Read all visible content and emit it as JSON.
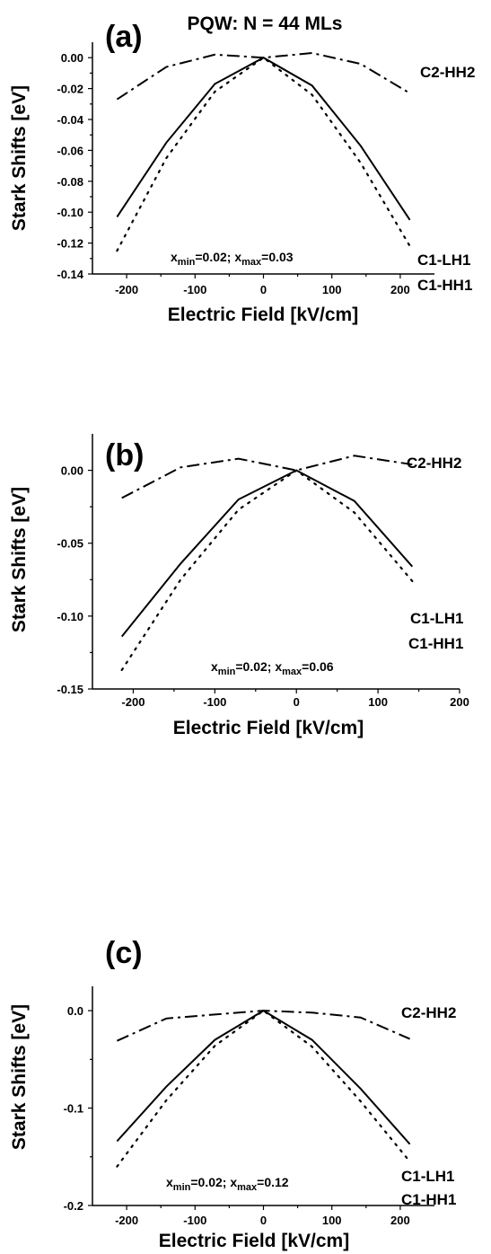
{
  "chart_data": [
    {
      "type": "line",
      "panel_label": "(a)",
      "title": "PQW: N = 44 MLs",
      "xlabel": "Electric Field [kV/cm]",
      "ylabel": "Stark Shifts [eV]",
      "xlim": [
        -250,
        250
      ],
      "ylim": [
        -0.14,
        0.01
      ],
      "xticks": [
        -200,
        -100,
        0,
        100,
        200
      ],
      "xtick_labels": [
        "-200",
        "-100",
        "0",
        "100",
        "200"
      ],
      "yticks": [
        0.0,
        -0.02,
        -0.04,
        -0.06,
        -0.08,
        -0.1,
        -0.12,
        -0.14
      ],
      "ytick_labels": [
        "0.00",
        "-0.02",
        "-0.04",
        "-0.06",
        "-0.08",
        "-0.10",
        "-0.12",
        "-0.14"
      ],
      "annotation": {
        "a": "x",
        "b": "min",
        "c": "=0.02;   x",
        "d": "max",
        "e": "=0.03"
      },
      "series": [
        {
          "name": "C2-HH2",
          "style": "dashdot",
          "x": [
            -214,
            -142,
            -71,
            0,
            71,
            142,
            214
          ],
          "y": [
            -0.027,
            -0.006,
            0.002,
            0.0,
            0.003,
            -0.004,
            -0.023
          ]
        },
        {
          "name": "C1-LH1",
          "style": "solid",
          "x": [
            -214,
            -142,
            -71,
            0,
            71,
            142,
            214
          ],
          "y": [
            -0.103,
            -0.055,
            -0.017,
            0.0,
            -0.018,
            -0.057,
            -0.105
          ]
        },
        {
          "name": "C1-HH1",
          "style": "dotted",
          "x": [
            -214,
            -142,
            -71,
            0,
            71,
            142,
            214
          ],
          "y": [
            -0.125,
            -0.065,
            -0.022,
            0.0,
            -0.024,
            -0.068,
            -0.122
          ]
        }
      ]
    },
    {
      "type": "line",
      "panel_label": "(b)",
      "title": "",
      "xlabel": "Electric Field [kV/cm]",
      "ylabel": "Stark Shifts [eV]",
      "xlim": [
        -250,
        200
      ],
      "ylim": [
        -0.15,
        0.025
      ],
      "xticks": [
        -200,
        -100,
        0,
        100,
        200
      ],
      "xtick_labels": [
        "-200",
        "-100",
        "0",
        "100",
        "200"
      ],
      "yticks": [
        0.0,
        -0.05,
        -0.1,
        -0.15
      ],
      "ytick_labels": [
        "0.00",
        "-0.05",
        "-0.10",
        "-0.15"
      ],
      "annotation": {
        "a": "x",
        "b": "min",
        "c": "=0.02;  x",
        "d": "max",
        "e": "=0.06"
      },
      "series": [
        {
          "name": "C2-HH2",
          "style": "dashdot",
          "x": [
            -214,
            -142,
            -71,
            0,
            71,
            142
          ],
          "y": [
            -0.019,
            0.002,
            0.008,
            0.0,
            0.01,
            0.004
          ]
        },
        {
          "name": "C1-LH1",
          "style": "solid",
          "x": [
            -214,
            -142,
            -71,
            0,
            71,
            142
          ],
          "y": [
            -0.114,
            -0.064,
            -0.02,
            0.0,
            -0.021,
            -0.066
          ]
        },
        {
          "name": "C1-HH1",
          "style": "dotted",
          "x": [
            -214,
            -142,
            -71,
            0,
            71,
            142
          ],
          "y": [
            -0.137,
            -0.075,
            -0.027,
            0.0,
            -0.029,
            -0.076
          ]
        }
      ]
    },
    {
      "type": "line",
      "panel_label": "(c)",
      "title": "",
      "xlabel": "Electric Field [kV/cm]",
      "ylabel": "Stark Shifts [eV]",
      "xlim": [
        -250,
        250
      ],
      "ylim": [
        -0.2,
        0.025
      ],
      "xticks": [
        -200,
        -100,
        0,
        100,
        200
      ],
      "xtick_labels": [
        "-200",
        "-100",
        "0",
        "100",
        "200"
      ],
      "yticks": [
        0.0,
        -0.1,
        -0.2
      ],
      "ytick_labels": [
        "0.0",
        "-0.1",
        "-0.2"
      ],
      "annotation": {
        "a": "x",
        "b": "min",
        "c": "=0.02;  x",
        "d": "max",
        "e": "=0.12"
      },
      "series": [
        {
          "name": "C2-HH2",
          "style": "dashdot",
          "x": [
            -214,
            -142,
            -71,
            0,
            71,
            142,
            214
          ],
          "y": [
            -0.031,
            -0.008,
            -0.004,
            0.0,
            -0.002,
            -0.007,
            -0.029
          ]
        },
        {
          "name": "C1-LH1",
          "style": "solid",
          "x": [
            -214,
            -142,
            -71,
            0,
            71,
            142,
            214
          ],
          "y": [
            -0.134,
            -0.078,
            -0.03,
            0.0,
            -0.03,
            -0.08,
            -0.137
          ]
        },
        {
          "name": "C1-HH1",
          "style": "dotted",
          "x": [
            -214,
            -142,
            -71,
            0,
            71,
            142,
            214
          ],
          "y": [
            -0.16,
            -0.092,
            -0.036,
            0.0,
            -0.037,
            -0.093,
            -0.155
          ]
        }
      ]
    }
  ]
}
